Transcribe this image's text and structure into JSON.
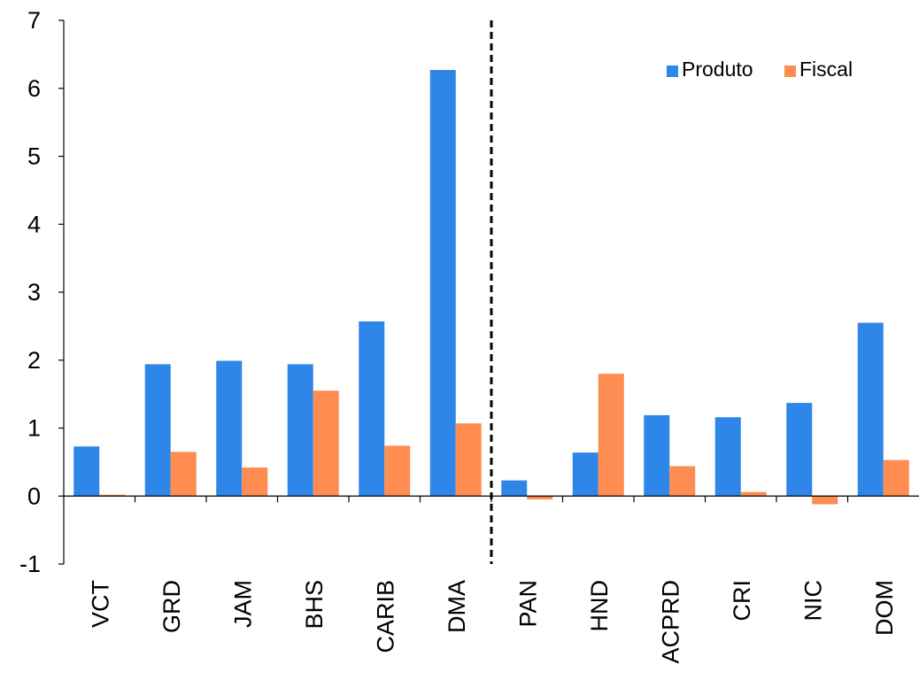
{
  "chart_data": {
    "type": "bar",
    "categories": [
      "VCT",
      "GRD",
      "JAM",
      "BHS",
      "CARIB",
      "DMA",
      "PAN",
      "HND",
      "ACPRD",
      "CRI",
      "NIC",
      "DOM"
    ],
    "series": [
      {
        "name": "Produto",
        "color": "#2e86e8",
        "values": [
          0.73,
          1.94,
          1.99,
          1.94,
          2.57,
          6.27,
          0.23,
          0.64,
          1.19,
          1.16,
          1.37,
          2.55
        ]
      },
      {
        "name": "Fiscal",
        "color": "#ff8c50",
        "values": [
          0.02,
          0.65,
          0.42,
          1.55,
          0.74,
          1.07,
          -0.05,
          1.8,
          0.44,
          0.06,
          -0.12,
          0.53
        ]
      }
    ],
    "ylim": [
      -1,
      7
    ],
    "yticks": [
      "-1",
      "0",
      "1",
      "2",
      "3",
      "4",
      "5",
      "6",
      "7"
    ],
    "divider_after_category": "DMA",
    "divider_style": "dashed",
    "legend_position": "top-right",
    "grid": false,
    "title": "",
    "xlabel": "",
    "ylabel": ""
  }
}
